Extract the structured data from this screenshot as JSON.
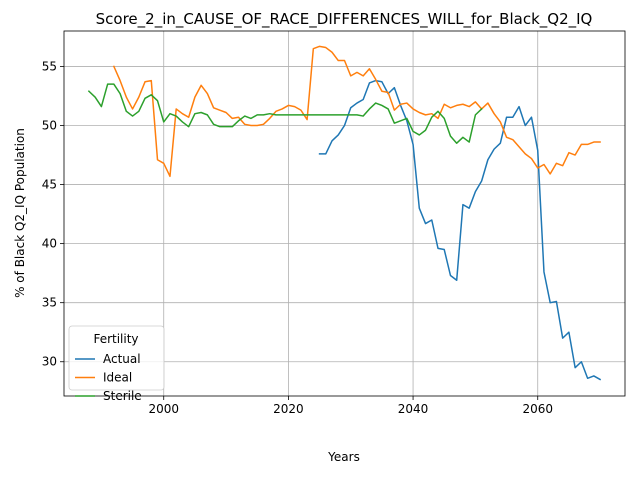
{
  "chart_data": {
    "type": "line",
    "title": "Score_2_in_CAUSE_OF_RACE_DIFFERENCES_WILL_for_Black_Q2_IQ",
    "xlabel": "Years",
    "ylabel": "% of Black Q2_IQ Population",
    "xlim": [
      1984,
      2074
    ],
    "ylim": [
      27.1,
      58.0
    ],
    "xticks": [
      2000,
      2020,
      2040,
      2060
    ],
    "yticks": [
      30,
      35,
      40,
      45,
      50,
      55
    ],
    "grid": true,
    "legend": {
      "title": "Fertility",
      "position": "lower-left",
      "entries": [
        "Actual",
        "Ideal",
        "Sterile"
      ]
    },
    "colors": {
      "Actual": "#1f77b4",
      "Ideal": "#ff7f0e",
      "Sterile": "#2ca02c"
    },
    "series": [
      {
        "name": "Actual",
        "x": [
          2025,
          2026,
          2027,
          2028,
          2029,
          2030,
          2031,
          2032,
          2033,
          2034,
          2035,
          2036,
          2037,
          2038,
          2039,
          2040,
          2041,
          2042,
          2043,
          2044,
          2045,
          2046,
          2047,
          2048,
          2049,
          2050,
          2051,
          2052,
          2053,
          2054,
          2055,
          2056,
          2057,
          2058,
          2059,
          2060,
          2061,
          2062,
          2063,
          2064,
          2065,
          2066,
          2067,
          2068,
          2069,
          2070
        ],
        "y": [
          47.6,
          47.6,
          48.7,
          49.2,
          50.0,
          51.5,
          51.9,
          52.2,
          53.6,
          53.8,
          53.7,
          52.7,
          53.2,
          51.7,
          50.4,
          48.4,
          43.0,
          41.7,
          42.0,
          39.6,
          39.5,
          37.3,
          36.9,
          43.3,
          43.0,
          44.4,
          45.3,
          47.1,
          48.0,
          48.5,
          50.7,
          50.7,
          51.6,
          50.0,
          50.7,
          47.9,
          37.6,
          35.0,
          35.1,
          32.0,
          32.5,
          29.5,
          30.0,
          28.6,
          28.8,
          28.5
        ]
      },
      {
        "name": "Ideal",
        "x": [
          1992,
          1993,
          1994,
          1995,
          1996,
          1997,
          1998,
          1999,
          2000,
          2001,
          2002,
          2003,
          2004,
          2005,
          2006,
          2007,
          2008,
          2009,
          2010,
          2011,
          2012,
          2013,
          2014,
          2015,
          2016,
          2017,
          2018,
          2019,
          2020,
          2021,
          2022,
          2023,
          2024,
          2025,
          2026,
          2027,
          2028,
          2029,
          2030,
          2031,
          2032,
          2033,
          2034,
          2035,
          2036,
          2037,
          2038,
          2039,
          2040,
          2041,
          2042,
          2043,
          2044,
          2045,
          2046,
          2047,
          2048,
          2049,
          2050,
          2051,
          2052,
          2053,
          2054,
          2055,
          2056,
          2057,
          2058,
          2059,
          2060,
          2061,
          2062,
          2063,
          2064,
          2065,
          2066,
          2067,
          2068,
          2069,
          2070
        ],
        "y": [
          55.0,
          53.8,
          52.4,
          51.4,
          52.4,
          53.7,
          53.8,
          47.1,
          46.8,
          45.7,
          51.4,
          51.0,
          50.7,
          52.4,
          53.4,
          52.7,
          51.5,
          51.3,
          51.1,
          50.6,
          50.7,
          50.1,
          50.0,
          50.0,
          50.1,
          50.6,
          51.2,
          51.4,
          51.7,
          51.6,
          51.3,
          50.5,
          56.5,
          56.7,
          56.6,
          56.2,
          55.5,
          55.5,
          54.2,
          54.5,
          54.2,
          54.8,
          53.9,
          52.9,
          52.8,
          51.3,
          51.8,
          51.9,
          51.4,
          51.1,
          50.9,
          51.0,
          50.6,
          51.8,
          51.5,
          51.7,
          51.8,
          51.6,
          52.0,
          51.4,
          51.9,
          51.0,
          50.3,
          49.0,
          48.8,
          48.2,
          47.6,
          47.2,
          46.4,
          46.7,
          45.9,
          46.8,
          46.6,
          47.7,
          47.5,
          48.4,
          48.4,
          48.6,
          48.6
        ]
      },
      {
        "name": "Sterile",
        "x": [
          1988,
          1989,
          1990,
          1991,
          1992,
          1993,
          1994,
          1995,
          1996,
          1997,
          1998,
          1999,
          2000,
          2001,
          2002,
          2003,
          2004,
          2005,
          2006,
          2007,
          2008,
          2009,
          2010,
          2011,
          2012,
          2013,
          2014,
          2015,
          2016,
          2017,
          2018,
          2019,
          2020,
          2021,
          2022,
          2023,
          2024,
          2025,
          2026,
          2027,
          2028,
          2029,
          2030,
          2031,
          2032,
          2033,
          2034,
          2035,
          2036,
          2037,
          2038,
          2039,
          2040,
          2041,
          2042,
          2043,
          2044,
          2045,
          2046,
          2047,
          2048,
          2049,
          2050,
          2051
        ],
        "y": [
          52.9,
          52.4,
          51.6,
          53.5,
          53.5,
          52.7,
          51.2,
          50.8,
          51.2,
          52.3,
          52.6,
          52.1,
          50.3,
          51.0,
          50.8,
          50.3,
          49.9,
          51.0,
          51.1,
          50.9,
          50.1,
          49.9,
          49.9,
          49.9,
          50.4,
          50.8,
          50.6,
          50.9,
          50.9,
          51.0,
          50.9,
          50.9,
          50.9,
          50.9,
          50.9,
          50.9,
          50.9,
          50.9,
          50.9,
          50.9,
          50.9,
          50.9,
          50.9,
          50.9,
          50.8,
          51.4,
          51.9,
          51.7,
          51.4,
          50.2,
          50.4,
          50.6,
          49.5,
          49.2,
          49.6,
          50.7,
          51.2,
          50.6,
          49.1,
          48.5,
          49.0,
          48.6,
          50.9,
          51.4
        ]
      }
    ]
  }
}
